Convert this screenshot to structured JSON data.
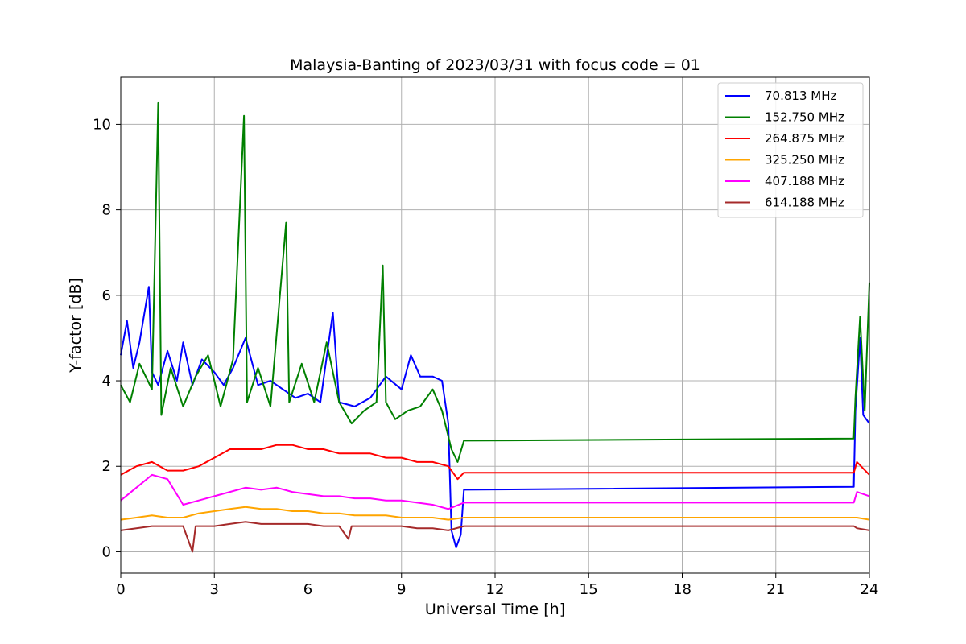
{
  "chart_data": {
    "type": "line",
    "title": "Malaysia-Banting of 2023/03/31 with focus code = 01",
    "xlabel": "Universal Time [h]",
    "ylabel": "Y-factor [dB]",
    "xlim": [
      0,
      24
    ],
    "ylim": [
      -0.5,
      11.1
    ],
    "xticks": [
      0,
      3,
      6,
      9,
      12,
      15,
      18,
      21,
      24
    ],
    "yticks": [
      0,
      2,
      4,
      6,
      8,
      10
    ],
    "grid": true,
    "legend_position": "top-right",
    "series": [
      {
        "name": " 70.813 MHz",
        "color": "#0000ff",
        "points": [
          [
            0,
            4.6
          ],
          [
            0.2,
            5.4
          ],
          [
            0.4,
            4.3
          ],
          [
            0.6,
            4.9
          ],
          [
            0.9,
            6.2
          ],
          [
            1.0,
            4.2
          ],
          [
            1.2,
            3.9
          ],
          [
            1.5,
            4.7
          ],
          [
            1.8,
            4.0
          ],
          [
            2.0,
            4.9
          ],
          [
            2.3,
            3.9
          ],
          [
            2.6,
            4.5
          ],
          [
            3.0,
            4.2
          ],
          [
            3.3,
            3.9
          ],
          [
            3.6,
            4.3
          ],
          [
            4.0,
            5.0
          ],
          [
            4.4,
            3.9
          ],
          [
            4.8,
            4.0
          ],
          [
            5.2,
            3.8
          ],
          [
            5.6,
            3.6
          ],
          [
            6.0,
            3.7
          ],
          [
            6.4,
            3.5
          ],
          [
            6.8,
            5.6
          ],
          [
            7.0,
            3.5
          ],
          [
            7.5,
            3.4
          ],
          [
            8.0,
            3.6
          ],
          [
            8.5,
            4.1
          ],
          [
            9.0,
            3.8
          ],
          [
            9.3,
            4.6
          ],
          [
            9.6,
            4.1
          ],
          [
            10.0,
            4.1
          ],
          [
            10.3,
            4.0
          ],
          [
            10.5,
            3.0
          ],
          [
            10.6,
            0.5
          ],
          [
            10.75,
            0.1
          ],
          [
            10.9,
            0.4
          ],
          [
            11.0,
            1.45
          ],
          [
            23.5,
            1.52
          ],
          [
            23.55,
            3.3
          ],
          [
            23.7,
            5.0
          ],
          [
            23.8,
            3.2
          ],
          [
            24.0,
            3.0
          ]
        ]
      },
      {
        "name": "152.750 MHz",
        "color": "#008000",
        "points": [
          [
            0,
            3.9
          ],
          [
            0.3,
            3.5
          ],
          [
            0.6,
            4.4
          ],
          [
            1.0,
            3.8
          ],
          [
            1.2,
            10.5
          ],
          [
            1.3,
            3.2
          ],
          [
            1.6,
            4.3
          ],
          [
            2.0,
            3.4
          ],
          [
            2.4,
            4.1
          ],
          [
            2.8,
            4.6
          ],
          [
            3.2,
            3.4
          ],
          [
            3.6,
            4.5
          ],
          [
            3.95,
            10.2
          ],
          [
            4.05,
            3.5
          ],
          [
            4.4,
            4.3
          ],
          [
            4.8,
            3.4
          ],
          [
            5.3,
            7.7
          ],
          [
            5.4,
            3.5
          ],
          [
            5.8,
            4.4
          ],
          [
            6.2,
            3.5
          ],
          [
            6.6,
            4.9
          ],
          [
            7.0,
            3.5
          ],
          [
            7.4,
            3.0
          ],
          [
            7.8,
            3.3
          ],
          [
            8.2,
            3.5
          ],
          [
            8.4,
            6.7
          ],
          [
            8.5,
            3.5
          ],
          [
            8.8,
            3.1
          ],
          [
            9.2,
            3.3
          ],
          [
            9.6,
            3.4
          ],
          [
            10.0,
            3.8
          ],
          [
            10.3,
            3.3
          ],
          [
            10.6,
            2.4
          ],
          [
            10.8,
            2.1
          ],
          [
            11.0,
            2.6
          ],
          [
            23.5,
            2.65
          ],
          [
            23.55,
            3.6
          ],
          [
            23.7,
            5.5
          ],
          [
            23.85,
            3.3
          ],
          [
            24.0,
            6.3
          ]
        ]
      },
      {
        "name": "264.875 MHz",
        "color": "#ff0000",
        "points": [
          [
            0,
            1.8
          ],
          [
            0.5,
            2.0
          ],
          [
            1.0,
            2.1
          ],
          [
            1.5,
            1.9
          ],
          [
            2.0,
            1.9
          ],
          [
            2.5,
            2.0
          ],
          [
            3.0,
            2.2
          ],
          [
            3.5,
            2.4
          ],
          [
            4.0,
            2.4
          ],
          [
            4.5,
            2.4
          ],
          [
            5.0,
            2.5
          ],
          [
            5.5,
            2.5
          ],
          [
            6.0,
            2.4
          ],
          [
            6.5,
            2.4
          ],
          [
            7.0,
            2.3
          ],
          [
            7.5,
            2.3
          ],
          [
            8.0,
            2.3
          ],
          [
            8.5,
            2.2
          ],
          [
            9.0,
            2.2
          ],
          [
            9.5,
            2.1
          ],
          [
            10.0,
            2.1
          ],
          [
            10.5,
            2.0
          ],
          [
            10.8,
            1.7
          ],
          [
            11.0,
            1.85
          ],
          [
            23.5,
            1.85
          ],
          [
            23.6,
            2.1
          ],
          [
            24.0,
            1.8
          ]
        ]
      },
      {
        "name": "325.250 MHz",
        "color": "#ffa500",
        "points": [
          [
            0,
            0.75
          ],
          [
            0.5,
            0.8
          ],
          [
            1.0,
            0.85
          ],
          [
            1.5,
            0.8
          ],
          [
            2.0,
            0.8
          ],
          [
            2.5,
            0.9
          ],
          [
            3.0,
            0.95
          ],
          [
            3.5,
            1.0
          ],
          [
            4.0,
            1.05
          ],
          [
            4.5,
            1.0
          ],
          [
            5.0,
            1.0
          ],
          [
            5.5,
            0.95
          ],
          [
            6.0,
            0.95
          ],
          [
            6.5,
            0.9
          ],
          [
            7.0,
            0.9
          ],
          [
            7.5,
            0.85
          ],
          [
            8.0,
            0.85
          ],
          [
            8.5,
            0.85
          ],
          [
            9.0,
            0.8
          ],
          [
            9.5,
            0.8
          ],
          [
            10.0,
            0.8
          ],
          [
            10.5,
            0.75
          ],
          [
            11.0,
            0.8
          ],
          [
            23.5,
            0.8
          ],
          [
            23.6,
            0.8
          ],
          [
            24.0,
            0.75
          ]
        ]
      },
      {
        "name": "407.188 MHz",
        "color": "#ff00ff",
        "points": [
          [
            0,
            1.2
          ],
          [
            0.5,
            1.5
          ],
          [
            1.0,
            1.8
          ],
          [
            1.5,
            1.7
          ],
          [
            2.0,
            1.1
          ],
          [
            2.5,
            1.2
          ],
          [
            3.0,
            1.3
          ],
          [
            3.5,
            1.4
          ],
          [
            4.0,
            1.5
          ],
          [
            4.5,
            1.45
          ],
          [
            5.0,
            1.5
          ],
          [
            5.5,
            1.4
          ],
          [
            6.0,
            1.35
          ],
          [
            6.5,
            1.3
          ],
          [
            7.0,
            1.3
          ],
          [
            7.5,
            1.25
          ],
          [
            8.0,
            1.25
          ],
          [
            8.5,
            1.2
          ],
          [
            9.0,
            1.2
          ],
          [
            9.5,
            1.15
          ],
          [
            10.0,
            1.1
          ],
          [
            10.5,
            1.0
          ],
          [
            11.0,
            1.15
          ],
          [
            23.5,
            1.15
          ],
          [
            23.6,
            1.4
          ],
          [
            24.0,
            1.3
          ]
        ]
      },
      {
        "name": "614.188 MHz",
        "color": "#a52a2a",
        "points": [
          [
            0,
            0.5
          ],
          [
            0.5,
            0.55
          ],
          [
            1.0,
            0.6
          ],
          [
            1.5,
            0.6
          ],
          [
            2.0,
            0.6
          ],
          [
            2.3,
            0.0
          ],
          [
            2.4,
            0.6
          ],
          [
            3.0,
            0.6
          ],
          [
            3.5,
            0.65
          ],
          [
            4.0,
            0.7
          ],
          [
            4.5,
            0.65
          ],
          [
            5.0,
            0.65
          ],
          [
            5.5,
            0.65
          ],
          [
            6.0,
            0.65
          ],
          [
            6.5,
            0.6
          ],
          [
            7.0,
            0.6
          ],
          [
            7.3,
            0.3
          ],
          [
            7.4,
            0.6
          ],
          [
            8.0,
            0.6
          ],
          [
            8.5,
            0.6
          ],
          [
            9.0,
            0.6
          ],
          [
            9.5,
            0.55
          ],
          [
            10.0,
            0.55
          ],
          [
            10.5,
            0.5
          ],
          [
            11.0,
            0.6
          ],
          [
            23.5,
            0.6
          ],
          [
            23.6,
            0.55
          ],
          [
            24.0,
            0.5
          ]
        ]
      }
    ]
  }
}
